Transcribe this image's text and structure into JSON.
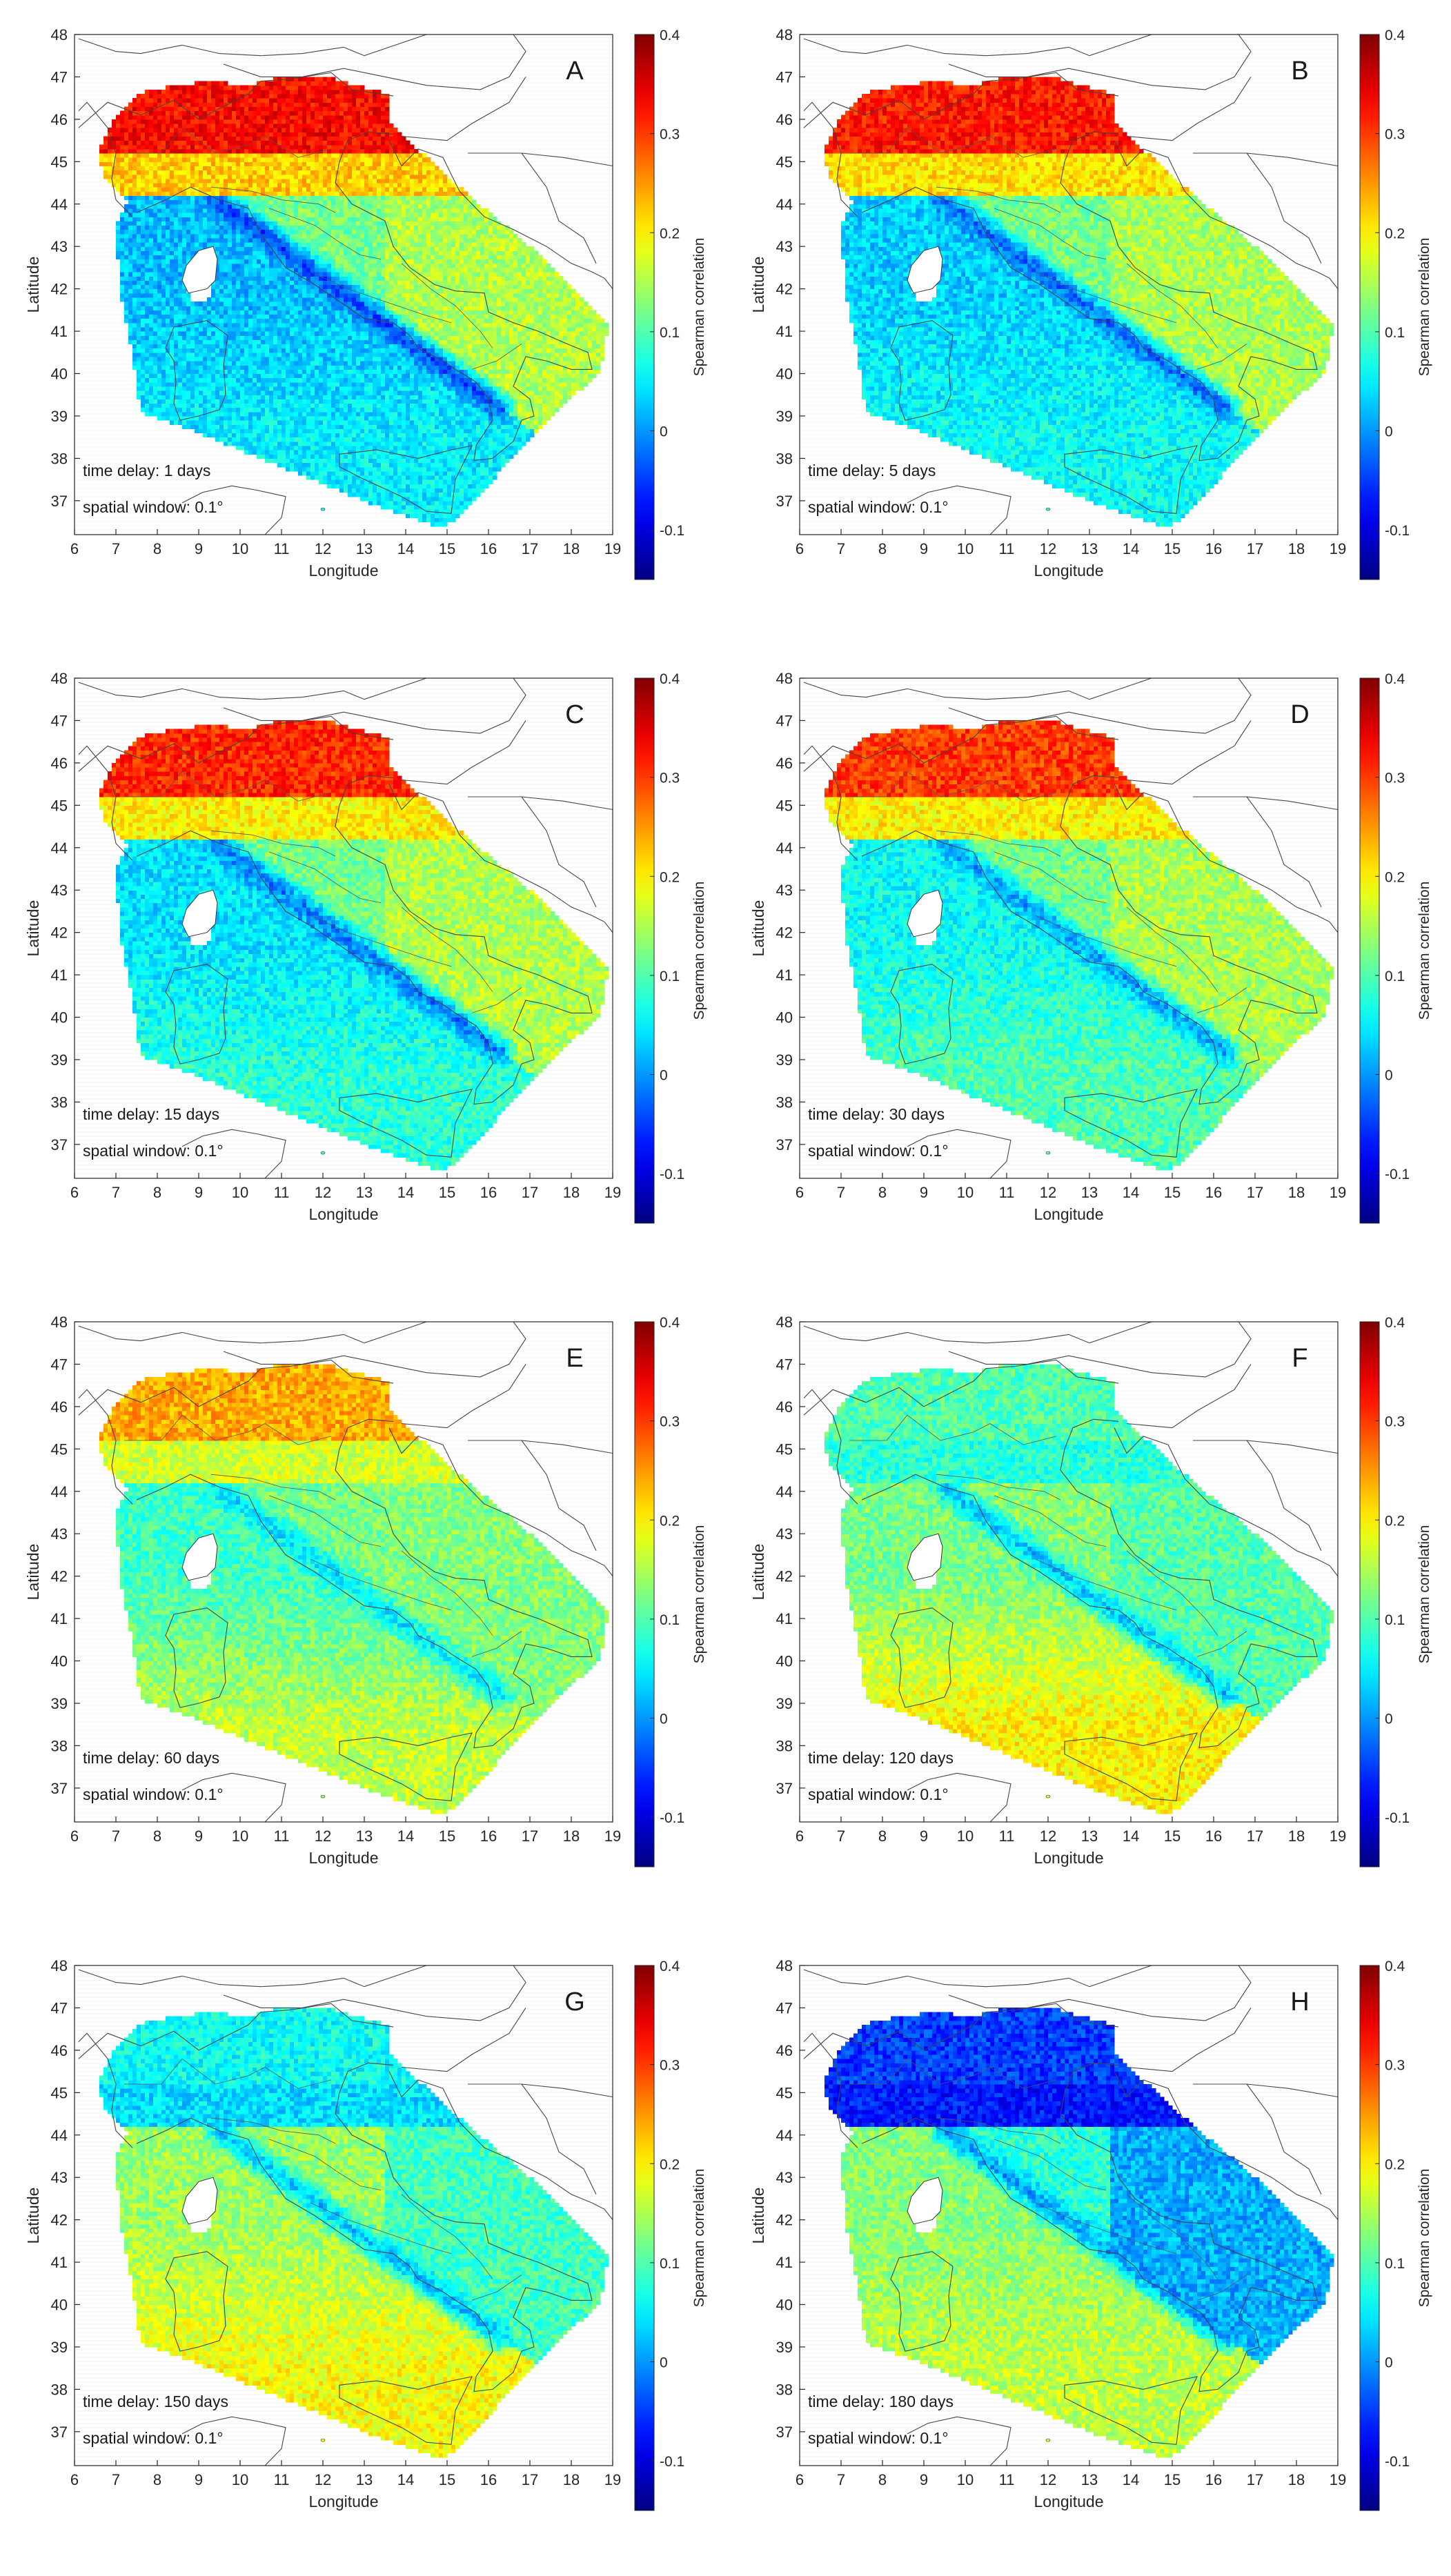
{
  "figure": {
    "xlabel": "Longitude",
    "ylabel": "Latitude",
    "colorbar_label": "Spearman correlation",
    "x_ticks": [
      6,
      7,
      8,
      9,
      10,
      11,
      12,
      13,
      14,
      15,
      16,
      17,
      18,
      19
    ],
    "y_ticks": [
      37,
      38,
      39,
      40,
      41,
      42,
      43,
      44,
      45,
      46,
      47,
      48
    ],
    "xlim": [
      6,
      19
    ],
    "ylim": [
      36.2,
      48
    ],
    "colorbar_ticks": [
      "-0.1",
      "0",
      "0.1",
      "0.2",
      "0.3",
      "0.4"
    ],
    "colorbar_range": [
      -0.15,
      0.4
    ],
    "colormap": "jet"
  },
  "panels": [
    {
      "letter": "A",
      "delay_text": "time delay: 1 days",
      "window_text": "spatial window: 0.1°",
      "values": {
        "north": 0.33,
        "po": 0.22,
        "apennine": 0.2,
        "tyrrhenian": 0.02,
        "south": 0.05,
        "adriatic": 0.12,
        "ridge": -0.05
      }
    },
    {
      "letter": "B",
      "delay_text": "time delay: 5 days",
      "window_text": "spatial window: 0.1°",
      "values": {
        "north": 0.32,
        "po": 0.21,
        "apennine": 0.19,
        "tyrrhenian": 0.03,
        "south": 0.06,
        "adriatic": 0.12,
        "ridge": -0.03
      }
    },
    {
      "letter": "C",
      "delay_text": "time delay: 15 days",
      "window_text": "spatial window: 0.1°",
      "values": {
        "north": 0.31,
        "po": 0.2,
        "apennine": 0.2,
        "tyrrhenian": 0.04,
        "south": 0.08,
        "adriatic": 0.12,
        "ridge": -0.02
      }
    },
    {
      "letter": "D",
      "delay_text": "time delay: 30 days",
      "window_text": "spatial window: 0.1°",
      "values": {
        "north": 0.3,
        "po": 0.2,
        "apennine": 0.19,
        "tyrrhenian": 0.06,
        "south": 0.1,
        "adriatic": 0.12,
        "ridge": 0.0
      }
    },
    {
      "letter": "E",
      "delay_text": "time delay: 60 days",
      "window_text": "spatial window: 0.1°",
      "values": {
        "north": 0.24,
        "po": 0.17,
        "apennine": 0.14,
        "tyrrhenian": 0.09,
        "south": 0.16,
        "adriatic": 0.12,
        "ridge": 0.04
      }
    },
    {
      "letter": "F",
      "delay_text": "time delay: 120 days",
      "window_text": "spatial window: 0.1°",
      "values": {
        "north": 0.1,
        "po": 0.08,
        "apennine": 0.06,
        "tyrrhenian": 0.12,
        "south": 0.2,
        "adriatic": 0.13,
        "ridge": 0.02
      }
    },
    {
      "letter": "G",
      "delay_text": "time delay: 150 days",
      "window_text": "spatial window: 0.1°",
      "values": {
        "north": 0.06,
        "po": 0.04,
        "apennine": 0.02,
        "tyrrhenian": 0.14,
        "south": 0.19,
        "adriatic": 0.14,
        "ridge": 0.02
      }
    },
    {
      "letter": "H",
      "delay_text": "time delay: 180 days",
      "window_text": "spatial window: 0.1°",
      "values": {
        "north": -0.05,
        "po": -0.07,
        "apennine": -0.09,
        "tyrrhenian": 0.13,
        "south": 0.16,
        "adriatic": 0.08,
        "ridge": 0.0
      }
    }
  ]
}
